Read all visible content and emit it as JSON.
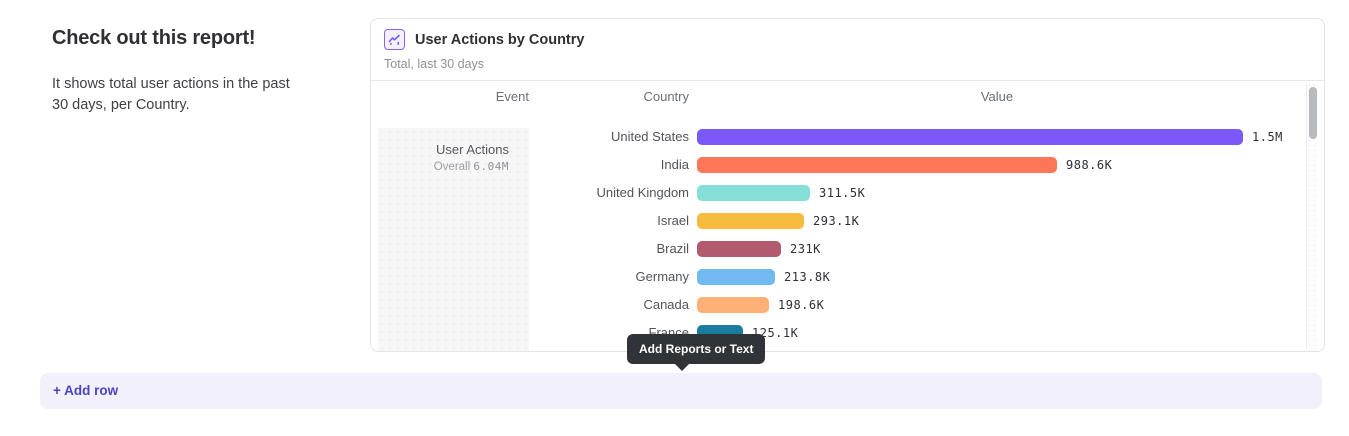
{
  "intro": {
    "heading": "Check out this report!",
    "body": "It shows total user actions in the past 30 days, per Country."
  },
  "report_card": {
    "icon": "line-chart-icon",
    "accent_color": "#8a63f9",
    "title": "User Actions by Country",
    "subtitle": "Total, last 30 days",
    "columns": {
      "event": "Event",
      "country": "Country",
      "value": "Value"
    },
    "event_cell": {
      "name": "User Actions",
      "overall_label": "Overall",
      "overall_value": "6.04M"
    },
    "chart_data": {
      "type": "bar",
      "orientation": "horizontal",
      "title": "User Actions by Country",
      "subtitle": "Total, last 30 days",
      "series_name": "User Actions",
      "series_total": "6.04M",
      "categories": [
        "United States",
        "India",
        "United Kingdom",
        "Israel",
        "Brazil",
        "Germany",
        "Canada",
        "France"
      ],
      "values_thousands": [
        1500,
        988.6,
        311.5,
        293.1,
        231,
        213.8,
        198.6,
        125.1
      ],
      "value_labels": [
        "1.5M",
        "988.6K",
        "311.5K",
        "293.1K",
        "231K",
        "213.8K",
        "198.6K",
        "125.1K"
      ],
      "bar_colors": [
        "#7a58fa",
        "#fe7658",
        "#85dfd6",
        "#f6bc3e",
        "#b25a6e",
        "#70baf1",
        "#feb077",
        "#1a7d9f"
      ],
      "xlim_thousands": [
        0,
        1500
      ],
      "grid": false,
      "legend": false
    }
  },
  "tooltip": {
    "text": "Add Reports or Text",
    "bg": "#303338"
  },
  "add_row": {
    "label": "+ Add row",
    "color": "#4b44bd",
    "bg": "#f2f1fb"
  }
}
